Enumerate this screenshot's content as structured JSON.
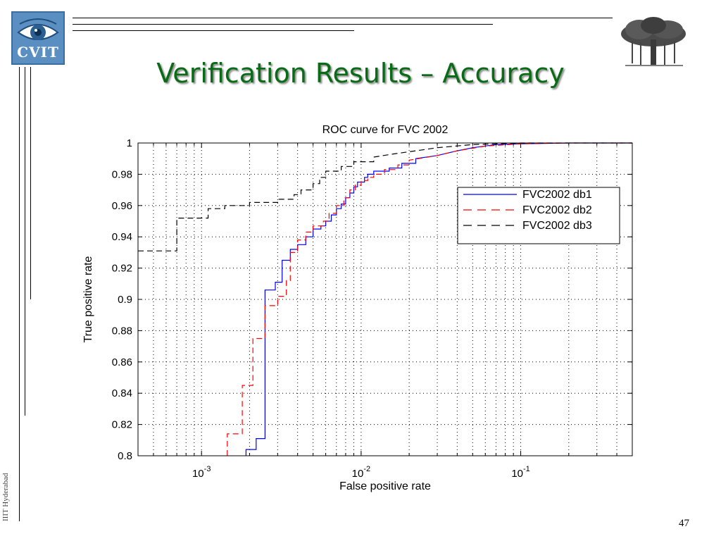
{
  "slide": {
    "title": "Verification Results – Accuracy",
    "logo_text": "CVIT",
    "side_text": "IIIT Hyderabad",
    "page_number": "47"
  },
  "chart_data": {
    "type": "line",
    "title": "ROC curve for FVC 2002",
    "xlabel": "False positive rate",
    "ylabel": "True positive rate",
    "x_scale": "log",
    "xlim": [
      0.0004,
      0.5
    ],
    "ylim": [
      0.8,
      1.0
    ],
    "grid": true,
    "legend_position": "upper-right",
    "x_ticks": [
      {
        "value": 0.001,
        "base": "10",
        "exp": "-3"
      },
      {
        "value": 0.01,
        "base": "10",
        "exp": "-2"
      },
      {
        "value": 0.1,
        "base": "10",
        "exp": "-1"
      }
    ],
    "y_ticks": [
      {
        "value": 0.8,
        "label": "0.8"
      },
      {
        "value": 0.82,
        "label": "0.82"
      },
      {
        "value": 0.84,
        "label": "0.84"
      },
      {
        "value": 0.86,
        "label": "0.86"
      },
      {
        "value": 0.88,
        "label": "0.88"
      },
      {
        "value": 0.9,
        "label": "0.9"
      },
      {
        "value": 0.92,
        "label": "0.92"
      },
      {
        "value": 0.94,
        "label": "0.94"
      },
      {
        "value": 0.96,
        "label": "0.96"
      },
      {
        "value": 0.98,
        "label": "0.98"
      },
      {
        "value": 1.0,
        "label": "1"
      }
    ],
    "series": [
      {
        "name": "FVC2002 db1",
        "color": "#0000ff",
        "dash": "solid",
        "points": [
          [
            0.0019,
            0.8
          ],
          [
            0.0019,
            0.804
          ],
          [
            0.0022,
            0.804
          ],
          [
            0.0022,
            0.811
          ],
          [
            0.0025,
            0.811
          ],
          [
            0.0025,
            0.906
          ],
          [
            0.0029,
            0.906
          ],
          [
            0.0029,
            0.911
          ],
          [
            0.0032,
            0.911
          ],
          [
            0.0032,
            0.925
          ],
          [
            0.0036,
            0.925
          ],
          [
            0.0036,
            0.932
          ],
          [
            0.004,
            0.932
          ],
          [
            0.004,
            0.935
          ],
          [
            0.0045,
            0.935
          ],
          [
            0.0045,
            0.94
          ],
          [
            0.005,
            0.94
          ],
          [
            0.005,
            0.945
          ],
          [
            0.0056,
            0.945
          ],
          [
            0.0056,
            0.947
          ],
          [
            0.006,
            0.947
          ],
          [
            0.006,
            0.95
          ],
          [
            0.0065,
            0.95
          ],
          [
            0.0065,
            0.954
          ],
          [
            0.007,
            0.954
          ],
          [
            0.007,
            0.958
          ],
          [
            0.0075,
            0.958
          ],
          [
            0.0075,
            0.961
          ],
          [
            0.008,
            0.961
          ],
          [
            0.008,
            0.965
          ],
          [
            0.0085,
            0.965
          ],
          [
            0.0085,
            0.968
          ],
          [
            0.009,
            0.968
          ],
          [
            0.009,
            0.972
          ],
          [
            0.0095,
            0.972
          ],
          [
            0.0095,
            0.975
          ],
          [
            0.0105,
            0.975
          ],
          [
            0.0105,
            0.978
          ],
          [
            0.011,
            0.978
          ],
          [
            0.011,
            0.98
          ],
          [
            0.012,
            0.98
          ],
          [
            0.012,
            0.982
          ],
          [
            0.015,
            0.982
          ],
          [
            0.015,
            0.984
          ],
          [
            0.018,
            0.984
          ],
          [
            0.018,
            0.987
          ],
          [
            0.022,
            0.987
          ],
          [
            0.022,
            0.99
          ],
          [
            0.03,
            0.992
          ],
          [
            0.04,
            0.995
          ],
          [
            0.05,
            0.997
          ],
          [
            0.07,
            0.999
          ],
          [
            0.1,
            0.9995
          ],
          [
            0.2,
            1.0
          ],
          [
            0.5,
            1.0
          ]
        ]
      },
      {
        "name": "FVC2002 db2",
        "color": "#ff0000",
        "dash": "dashed",
        "points": [
          [
            0.00145,
            0.8
          ],
          [
            0.00145,
            0.814
          ],
          [
            0.0018,
            0.814
          ],
          [
            0.0018,
            0.845
          ],
          [
            0.0021,
            0.845
          ],
          [
            0.0021,
            0.875
          ],
          [
            0.0025,
            0.875
          ],
          [
            0.0025,
            0.896
          ],
          [
            0.003,
            0.896
          ],
          [
            0.003,
            0.902
          ],
          [
            0.0034,
            0.902
          ],
          [
            0.0034,
            0.912
          ],
          [
            0.0036,
            0.912
          ],
          [
            0.0036,
            0.93
          ],
          [
            0.004,
            0.93
          ],
          [
            0.004,
            0.938
          ],
          [
            0.0045,
            0.938
          ],
          [
            0.0045,
            0.943
          ],
          [
            0.005,
            0.943
          ],
          [
            0.005,
            0.947
          ],
          [
            0.0058,
            0.947
          ],
          [
            0.0058,
            0.95
          ],
          [
            0.0063,
            0.95
          ],
          [
            0.0063,
            0.955
          ],
          [
            0.007,
            0.955
          ],
          [
            0.007,
            0.96
          ],
          [
            0.0078,
            0.96
          ],
          [
            0.0078,
            0.965
          ],
          [
            0.0085,
            0.965
          ],
          [
            0.0085,
            0.97
          ],
          [
            0.0092,
            0.97
          ],
          [
            0.0092,
            0.973
          ],
          [
            0.01,
            0.973
          ],
          [
            0.01,
            0.976
          ],
          [
            0.011,
            0.976
          ],
          [
            0.011,
            0.978
          ],
          [
            0.012,
            0.978
          ],
          [
            0.012,
            0.98
          ],
          [
            0.014,
            0.98
          ],
          [
            0.014,
            0.983
          ],
          [
            0.017,
            0.983
          ],
          [
            0.017,
            0.986
          ],
          [
            0.02,
            0.986
          ],
          [
            0.02,
            0.989
          ],
          [
            0.03,
            0.992
          ],
          [
            0.04,
            0.995
          ],
          [
            0.06,
            0.998
          ],
          [
            0.1,
            0.9995
          ],
          [
            0.2,
            1.0
          ],
          [
            0.5,
            1.0
          ]
        ]
      },
      {
        "name": "FVC2002 db3",
        "color": "#000000",
        "dash": "dashed",
        "points": [
          [
            0.0004,
            0.931
          ],
          [
            0.0007,
            0.931
          ],
          [
            0.0007,
            0.935
          ],
          [
            0.0007,
            0.952
          ],
          [
            0.0011,
            0.952
          ],
          [
            0.0011,
            0.958
          ],
          [
            0.0014,
            0.958
          ],
          [
            0.0014,
            0.96
          ],
          [
            0.002,
            0.96
          ],
          [
            0.002,
            0.962
          ],
          [
            0.003,
            0.962
          ],
          [
            0.003,
            0.964
          ],
          [
            0.0038,
            0.964
          ],
          [
            0.0038,
            0.967
          ],
          [
            0.0042,
            0.967
          ],
          [
            0.0042,
            0.97
          ],
          [
            0.005,
            0.97
          ],
          [
            0.005,
            0.974
          ],
          [
            0.0055,
            0.974
          ],
          [
            0.0055,
            0.978
          ],
          [
            0.006,
            0.978
          ],
          [
            0.006,
            0.982
          ],
          [
            0.0075,
            0.982
          ],
          [
            0.0075,
            0.985
          ],
          [
            0.009,
            0.985
          ],
          [
            0.009,
            0.988
          ],
          [
            0.012,
            0.988
          ],
          [
            0.012,
            0.991
          ],
          [
            0.016,
            0.993
          ],
          [
            0.022,
            0.995
          ],
          [
            0.03,
            0.997
          ],
          [
            0.05,
            0.999
          ],
          [
            0.1,
            1.0
          ],
          [
            0.5,
            1.0
          ]
        ]
      }
    ]
  }
}
